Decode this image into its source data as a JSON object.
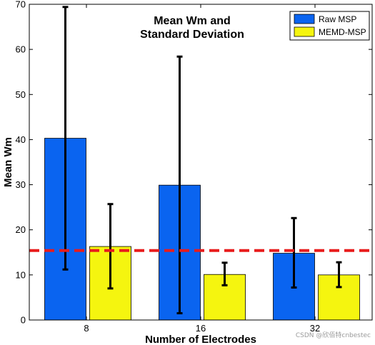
{
  "chart_data": {
    "type": "bar",
    "title_lines": [
      "Mean Wm and",
      "Standard Deviation"
    ],
    "xlabel": "Number of Electrodes",
    "ylabel": "Mean Wm",
    "categories": [
      "8",
      "16",
      "32"
    ],
    "ylim": [
      0,
      70
    ],
    "yticks": [
      "0",
      "10",
      "20",
      "30",
      "40",
      "50",
      "60",
      "70"
    ],
    "series": [
      {
        "name": "Raw MSP",
        "color": "#0a64f0",
        "values": [
          40.3,
          29.9,
          14.8
        ],
        "err_low": [
          11.2,
          1.5,
          7.2
        ],
        "err_high": [
          69.4,
          58.4,
          22.6
        ]
      },
      {
        "name": "MEMD-MSP",
        "color": "#f5f50f",
        "values": [
          16.3,
          10.1,
          10.0
        ],
        "err_low": [
          7.0,
          7.7,
          7.3
        ],
        "err_high": [
          25.7,
          12.7,
          12.8
        ]
      }
    ],
    "reference_line": {
      "value": 15.4,
      "color": "#e81c1c",
      "style": "dashed"
    },
    "legend_position": "top-right",
    "grid": false
  },
  "watermark": "CSDN @欣佰特cnbestec"
}
